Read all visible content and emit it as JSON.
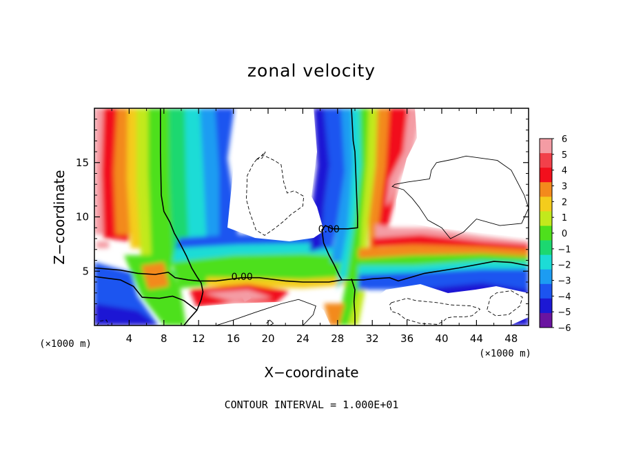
{
  "chart_data": {
    "type": "heatmap",
    "title": "zonal velocity",
    "xlabel": "X−coordinate",
    "ylabel": "Z−coordinate",
    "x_unit": "(×1000 m)",
    "y_unit": "(×1000 m)",
    "xlim": [
      0,
      50
    ],
    "ylim": [
      0,
      20
    ],
    "x_ticks": [
      4,
      8,
      12,
      16,
      20,
      24,
      28,
      32,
      36,
      40,
      44,
      48
    ],
    "y_ticks": [
      5,
      10,
      15
    ],
    "colorbar": {
      "levels": [
        6,
        5,
        4,
        3,
        2,
        1,
        0,
        -1,
        -2,
        -3,
        -4,
        -5,
        -6
      ],
      "labels": [
        "6",
        "5",
        "4",
        "3",
        "2",
        "1",
        "0",
        "−1",
        "−2",
        "−3",
        "−4",
        "−5",
        "−6"
      ],
      "colors": [
        "#f49ca4",
        "#f2404a",
        "#f20f1c",
        "#f38a1c",
        "#f4cc1c",
        "#c2e91c",
        "#4ee01c",
        "#1cd870",
        "#1cdcd6",
        "#1c9cf2",
        "#1c54f0",
        "#1c18d4",
        "#6a14a0"
      ]
    },
    "contour_labels": [
      {
        "text": "0.00",
        "x": 27.0,
        "z": 8.9
      },
      {
        "text": "0.00",
        "x": 17.0,
        "z": 4.5
      }
    ],
    "zero_contours": [
      {
        "name": "zero-line-main",
        "points": [
          [
            0,
            5.3
          ],
          [
            3,
            5.1
          ],
          [
            5,
            4.8
          ],
          [
            7,
            4.7
          ],
          [
            8.5,
            4.9
          ],
          [
            9.3,
            4.4
          ],
          [
            10.8,
            4.2
          ],
          [
            12,
            4.1
          ],
          [
            14,
            4.1
          ],
          [
            17,
            4.4
          ],
          [
            19,
            4.4
          ],
          [
            22,
            4.1
          ],
          [
            24,
            4.0
          ],
          [
            27,
            4.0
          ],
          [
            28.5,
            4.2
          ],
          [
            31,
            4.2
          ],
          [
            32,
            4.3
          ],
          [
            34,
            4.4
          ],
          [
            35,
            4.1
          ],
          [
            38,
            4.8
          ],
          [
            42,
            5.3
          ],
          [
            46,
            5.9
          ],
          [
            48,
            5.8
          ],
          [
            50,
            5.5
          ]
        ]
      },
      {
        "name": "zero-line-left-vertical",
        "points": [
          [
            7.6,
            20
          ],
          [
            7.6,
            16
          ],
          [
            7.7,
            12
          ],
          [
            8.0,
            10.5
          ],
          [
            8.7,
            9.5
          ],
          [
            9.2,
            8.5
          ],
          [
            9.9,
            7.5
          ],
          [
            10.6,
            6.4
          ],
          [
            11.2,
            5.3
          ],
          [
            11.8,
            4.5
          ],
          [
            12.3,
            3.9
          ],
          [
            12.5,
            3.1
          ],
          [
            12.3,
            2.4
          ],
          [
            11.8,
            1.4
          ],
          [
            10.8,
            0.5
          ],
          [
            10.3,
            0
          ]
        ]
      },
      {
        "name": "zero-line-lower-left",
        "points": [
          [
            0,
            4.5
          ],
          [
            3,
            4.2
          ],
          [
            4.5,
            3.6
          ],
          [
            5.5,
            2.6
          ],
          [
            7.5,
            2.5
          ],
          [
            9,
            2.7
          ],
          [
            10.3,
            2.3
          ],
          [
            11.8,
            1.4
          ]
        ]
      },
      {
        "name": "zero-line-center",
        "points": [
          [
            29.6,
            20
          ],
          [
            29.8,
            17
          ],
          [
            30.0,
            16
          ],
          [
            30.1,
            14
          ],
          [
            30.2,
            12
          ],
          [
            30.3,
            10
          ],
          [
            30.3,
            9.0
          ],
          [
            29.2,
            8.9
          ],
          [
            27.4,
            8.9
          ],
          [
            26.6,
            9.2
          ],
          [
            26.2,
            8.8
          ],
          [
            26.4,
            7.6
          ],
          [
            27.0,
            6.5
          ],
          [
            27.6,
            5.6
          ],
          [
            28.2,
            4.6
          ],
          [
            28.5,
            4.2
          ]
        ]
      },
      {
        "name": "zero-line-bottom-right",
        "points": [
          [
            29.6,
            4.3
          ],
          [
            30.0,
            3.3
          ],
          [
            29.9,
            2.2
          ],
          [
            30.0,
            1.0
          ],
          [
            30.0,
            0
          ]
        ]
      }
    ],
    "thin_contours": [
      {
        "name": "contour-right-loop",
        "points": [
          [
            38.6,
            13.5
          ],
          [
            38.8,
            14.3
          ],
          [
            39.4,
            15.0
          ],
          [
            41.3,
            15.3
          ],
          [
            42.8,
            15.6
          ],
          [
            46.4,
            15.2
          ],
          [
            48.0,
            14.3
          ],
          [
            49.5,
            12.0
          ],
          [
            50,
            10.8
          ],
          [
            49.2,
            9.4
          ],
          [
            46.7,
            9.2
          ],
          [
            44.0,
            9.8
          ],
          [
            42.5,
            8.6
          ],
          [
            41.0,
            8.0
          ],
          [
            40.0,
            9.0
          ],
          [
            38.4,
            9.7
          ],
          [
            37.4,
            10.9
          ],
          [
            36.6,
            11.7
          ],
          [
            35.6,
            12.5
          ],
          [
            34.3,
            12.8
          ],
          [
            34.6,
            13.0
          ],
          [
            36.0,
            13.2
          ],
          [
            38.6,
            13.5
          ]
        ]
      },
      {
        "name": "contour-bottom-center",
        "points": [
          [
            14.0,
            0
          ],
          [
            16.0,
            0.5
          ],
          [
            18.5,
            1.2
          ],
          [
            21.5,
            2.0
          ],
          [
            23.5,
            2.4
          ],
          [
            25.5,
            1.8
          ],
          [
            25.2,
            1.0
          ],
          [
            24.0,
            0
          ]
        ]
      },
      {
        "name": "contour-small-ring",
        "points": [
          [
            19.8,
            0.2
          ],
          [
            20.2,
            0.5
          ],
          [
            20.6,
            0.2
          ],
          [
            20.2,
            0
          ]
        ]
      }
    ],
    "dashed_contours": [
      {
        "name": "dashed-upper-center",
        "points": [
          [
            18.7,
            15.3
          ],
          [
            19.4,
            15.7
          ],
          [
            20.7,
            15.2
          ],
          [
            21.5,
            14.8
          ],
          [
            21.8,
            13.2
          ],
          [
            22.2,
            12.2
          ],
          [
            23.0,
            12.4
          ],
          [
            24.1,
            11.9
          ],
          [
            24.0,
            11.0
          ],
          [
            22.6,
            10.2
          ],
          [
            21.8,
            9.6
          ],
          [
            20.7,
            8.9
          ],
          [
            19.6,
            8.3
          ],
          [
            18.6,
            8.8
          ],
          [
            17.9,
            10.4
          ],
          [
            17.5,
            11.6
          ],
          [
            17.6,
            13.8
          ],
          [
            18.3,
            14.9
          ],
          [
            18.7,
            15.3
          ]
        ]
      },
      {
        "name": "dashed-small-top",
        "points": [
          [
            18.7,
            15.3
          ],
          [
            19.2,
            15.6
          ],
          [
            19.7,
            16.0
          ],
          [
            19.3,
            15.4
          ],
          [
            18.7,
            15.3
          ]
        ]
      },
      {
        "name": "dashed-lower-right",
        "points": [
          [
            34.2,
            2.1
          ],
          [
            36.0,
            2.5
          ],
          [
            37.0,
            2.3
          ],
          [
            39.5,
            2.1
          ],
          [
            41.0,
            1.9
          ],
          [
            43.3,
            1.8
          ],
          [
            44.2,
            1.6
          ],
          [
            44.4,
            1.5
          ],
          [
            43.5,
            0.9
          ],
          [
            42.7,
            0.8
          ],
          [
            41.4,
            0.8
          ],
          [
            40.6,
            0.7
          ],
          [
            40.2,
            0.4
          ],
          [
            39.5,
            0.1
          ],
          [
            37.5,
            0.2
          ],
          [
            35.8,
            0.6
          ],
          [
            35.0,
            1.1
          ],
          [
            34.2,
            1.3
          ],
          [
            34.0,
            1.9
          ],
          [
            34.2,
            2.1
          ]
        ]
      },
      {
        "name": "dashed-far-right",
        "points": [
          [
            45.6,
            2.6
          ],
          [
            46.3,
            3.0
          ],
          [
            48.0,
            3.2
          ],
          [
            49.3,
            2.6
          ],
          [
            49.0,
            1.8
          ],
          [
            47.7,
            1.0
          ],
          [
            46.2,
            0.9
          ],
          [
            45.2,
            1.4
          ],
          [
            45.6,
            2.6
          ]
        ]
      },
      {
        "name": "dashed-left-corner",
        "points": [
          [
            0.3,
            0
          ],
          [
            0.6,
            0.4
          ],
          [
            1.4,
            0.5
          ],
          [
            1.6,
            0
          ]
        ]
      }
    ]
  },
  "footnote": "CONTOUR INTERVAL = 1.000E+01"
}
